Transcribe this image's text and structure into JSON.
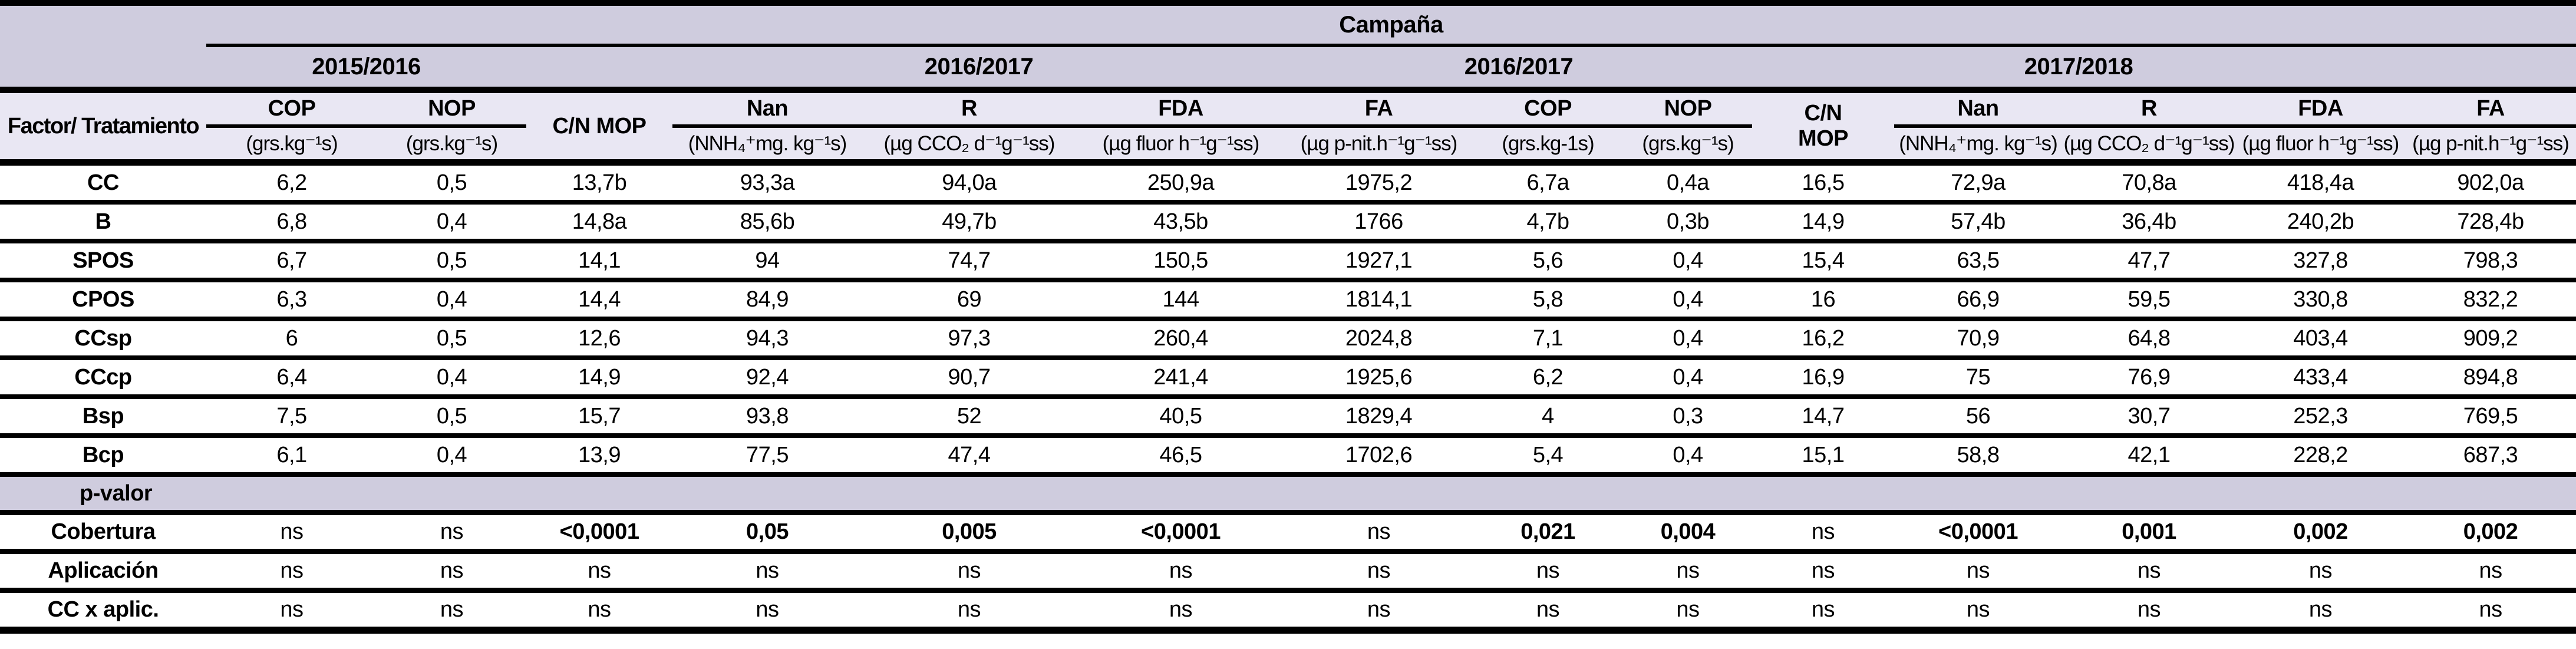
{
  "table": {
    "title": "Campaña",
    "col1_header": "Factor/ Tratamiento",
    "campaigns": [
      {
        "label": "2015/2016"
      },
      {
        "label": "2016/2017"
      },
      {
        "label": "2016/2017"
      },
      {
        "label": "2017/2018"
      }
    ],
    "columns": [
      {
        "name": "COP",
        "unit": "(grs.kg⁻¹s)"
      },
      {
        "name": "NOP",
        "unit": "(grs.kg⁻¹s)"
      },
      {
        "name": "C/N MOP",
        "unit": ""
      },
      {
        "name": "Nan",
        "unit": "(NNH₄⁺mg. kg⁻¹s)"
      },
      {
        "name": "R",
        "unit": "(µg CCO₂ d⁻¹g⁻¹ss)"
      },
      {
        "name": "FDA",
        "unit": "(µg fluor h⁻¹g⁻¹ss)"
      },
      {
        "name": "FA",
        "unit": "(µg p-nit.h⁻¹g⁻¹ss)"
      },
      {
        "name": "COP",
        "unit": "(grs.kg-1s)"
      },
      {
        "name": "NOP",
        "unit": "(grs.kg⁻¹s)"
      },
      {
        "name": "C/N MOP",
        "unit": ""
      },
      {
        "name": "Nan",
        "unit": "(NNH₄⁺mg. kg⁻¹s)"
      },
      {
        "name": "R",
        "unit": "(µg CCO₂ d⁻¹g⁻¹ss)"
      },
      {
        "name": "FDA",
        "unit": "(µg fluor h⁻¹g⁻¹ss)"
      },
      {
        "name": "FA",
        "unit": "(µg p-nit.h⁻¹g⁻¹ss)"
      }
    ],
    "treatment_rows": [
      {
        "label": "CC",
        "values": [
          "6,2",
          "0,5",
          "13,7b",
          "93,3a",
          "94,0a",
          "250,9a",
          "1975,2",
          "6,7a",
          "0,4a",
          "16,5",
          "72,9a",
          "70,8a",
          "418,4a",
          "902,0a"
        ]
      },
      {
        "label": "B",
        "values": [
          "6,8",
          "0,4",
          "14,8a",
          "85,6b",
          "49,7b",
          "43,5b",
          "1766",
          "4,7b",
          "0,3b",
          "14,9",
          "57,4b",
          "36,4b",
          "240,2b",
          "728,4b"
        ]
      },
      {
        "label": "SPOS",
        "values": [
          "6,7",
          "0,5",
          "14,1",
          "94",
          "74,7",
          "150,5",
          "1927,1",
          "5,6",
          "0,4",
          "15,4",
          "63,5",
          "47,7",
          "327,8",
          "798,3"
        ]
      },
      {
        "label": "CPOS",
        "values": [
          "6,3",
          "0,4",
          "14,4",
          "84,9",
          "69",
          "144",
          "1814,1",
          "5,8",
          "0,4",
          "16",
          "66,9",
          "59,5",
          "330,8",
          "832,2"
        ]
      },
      {
        "label": "CCsp",
        "values": [
          "6",
          "0,5",
          "12,6",
          "94,3",
          "97,3",
          "260,4",
          "2024,8",
          "7,1",
          "0,4",
          "16,2",
          "70,9",
          "64,8",
          "403,4",
          "909,2"
        ]
      },
      {
        "label": "CCcp",
        "values": [
          "6,4",
          "0,4",
          "14,9",
          "92,4",
          "90,7",
          "241,4",
          "1925,6",
          "6,2",
          "0,4",
          "16,9",
          "75",
          "76,9",
          "433,4",
          "894,8"
        ]
      },
      {
        "label": "Bsp",
        "values": [
          "7,5",
          "0,5",
          "15,7",
          "93,8",
          "52",
          "40,5",
          "1829,4",
          "4",
          "0,3",
          "14,7",
          "56",
          "30,7",
          "252,3",
          "769,5"
        ]
      },
      {
        "label": "Bcp",
        "values": [
          "6,1",
          "0,4",
          "13,9",
          "77,5",
          "47,4",
          "46,5",
          "1702,6",
          "5,4",
          "0,4",
          "15,1",
          "58,8",
          "42,1",
          "228,2",
          "687,3"
        ]
      }
    ],
    "p_section_label": "p-valor",
    "p_rows": [
      {
        "label": "Cobertura",
        "values": [
          "ns",
          "ns",
          "<0,0001",
          "0,05",
          "0,005",
          "<0,0001",
          "ns",
          "0,021",
          "0,004",
          "ns",
          "<0,0001",
          "0,001",
          "0,002",
          "0,002"
        ]
      },
      {
        "label": "Aplicación",
        "values": [
          "ns",
          "ns",
          "ns",
          "ns",
          "ns",
          "ns",
          "ns",
          "ns",
          "ns",
          "ns",
          "ns",
          "ns",
          "ns",
          "ns"
        ]
      },
      {
        "label": "CC x aplic.",
        "values": [
          "ns",
          "ns",
          "ns",
          "ns",
          "ns",
          "ns",
          "ns",
          "ns",
          "ns",
          "ns",
          "ns",
          "ns",
          "ns",
          "ns"
        ]
      }
    ],
    "colors": {
      "band_dark": "#cfccde",
      "band_light": "#e9e7f3",
      "border": "#000000"
    }
  }
}
